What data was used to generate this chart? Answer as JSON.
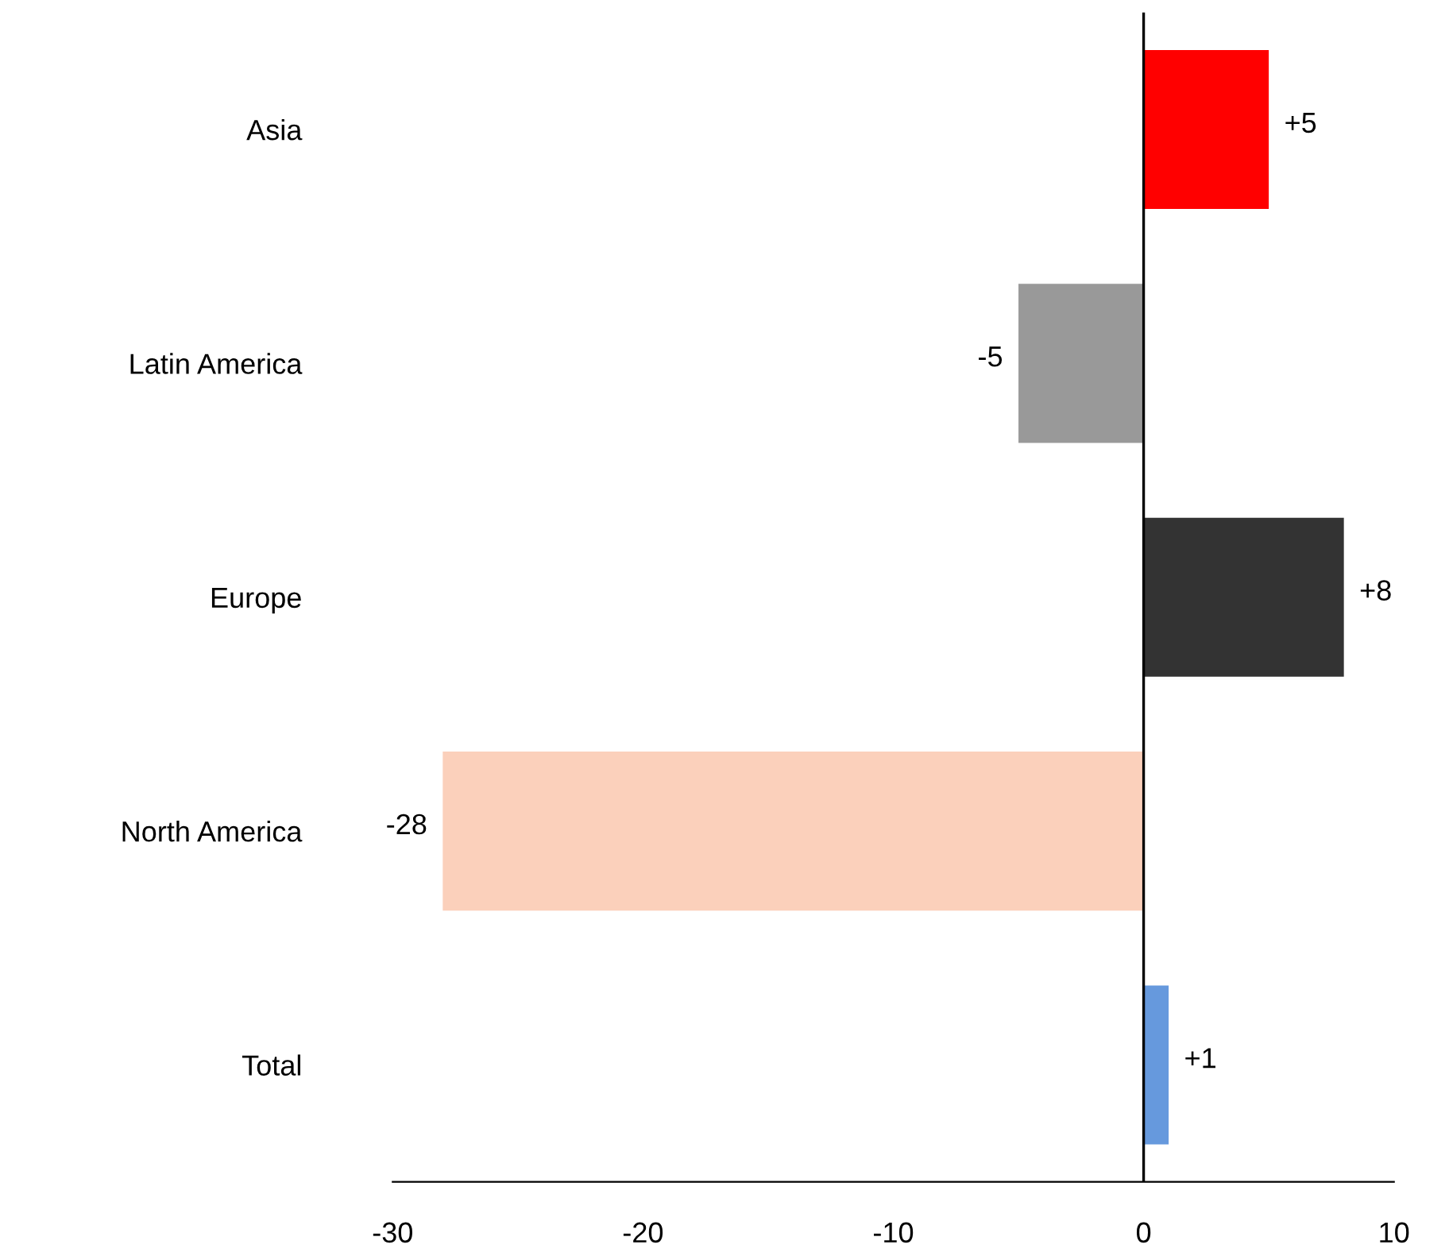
{
  "chart_data": {
    "type": "bar",
    "orientation": "horizontal",
    "categories": [
      "Asia",
      "Latin America",
      "Europe",
      "North America",
      "Total"
    ],
    "values": [
      5,
      -5,
      8,
      -28,
      1
    ],
    "colors": [
      "#ff0000",
      "#999999",
      "#333333",
      "#fbd0bb",
      "#6699dd"
    ],
    "value_labels": [
      "+5",
      "-5",
      "+8",
      "-28",
      "+1"
    ],
    "xlim": [
      -30,
      10
    ],
    "xticks": [
      -30,
      -20,
      -10,
      0,
      10
    ],
    "grid": false,
    "legend": false,
    "ref_lines": [
      {
        "axis": "x",
        "value": 0,
        "color": "#000000",
        "line_style": "solid"
      }
    ]
  }
}
